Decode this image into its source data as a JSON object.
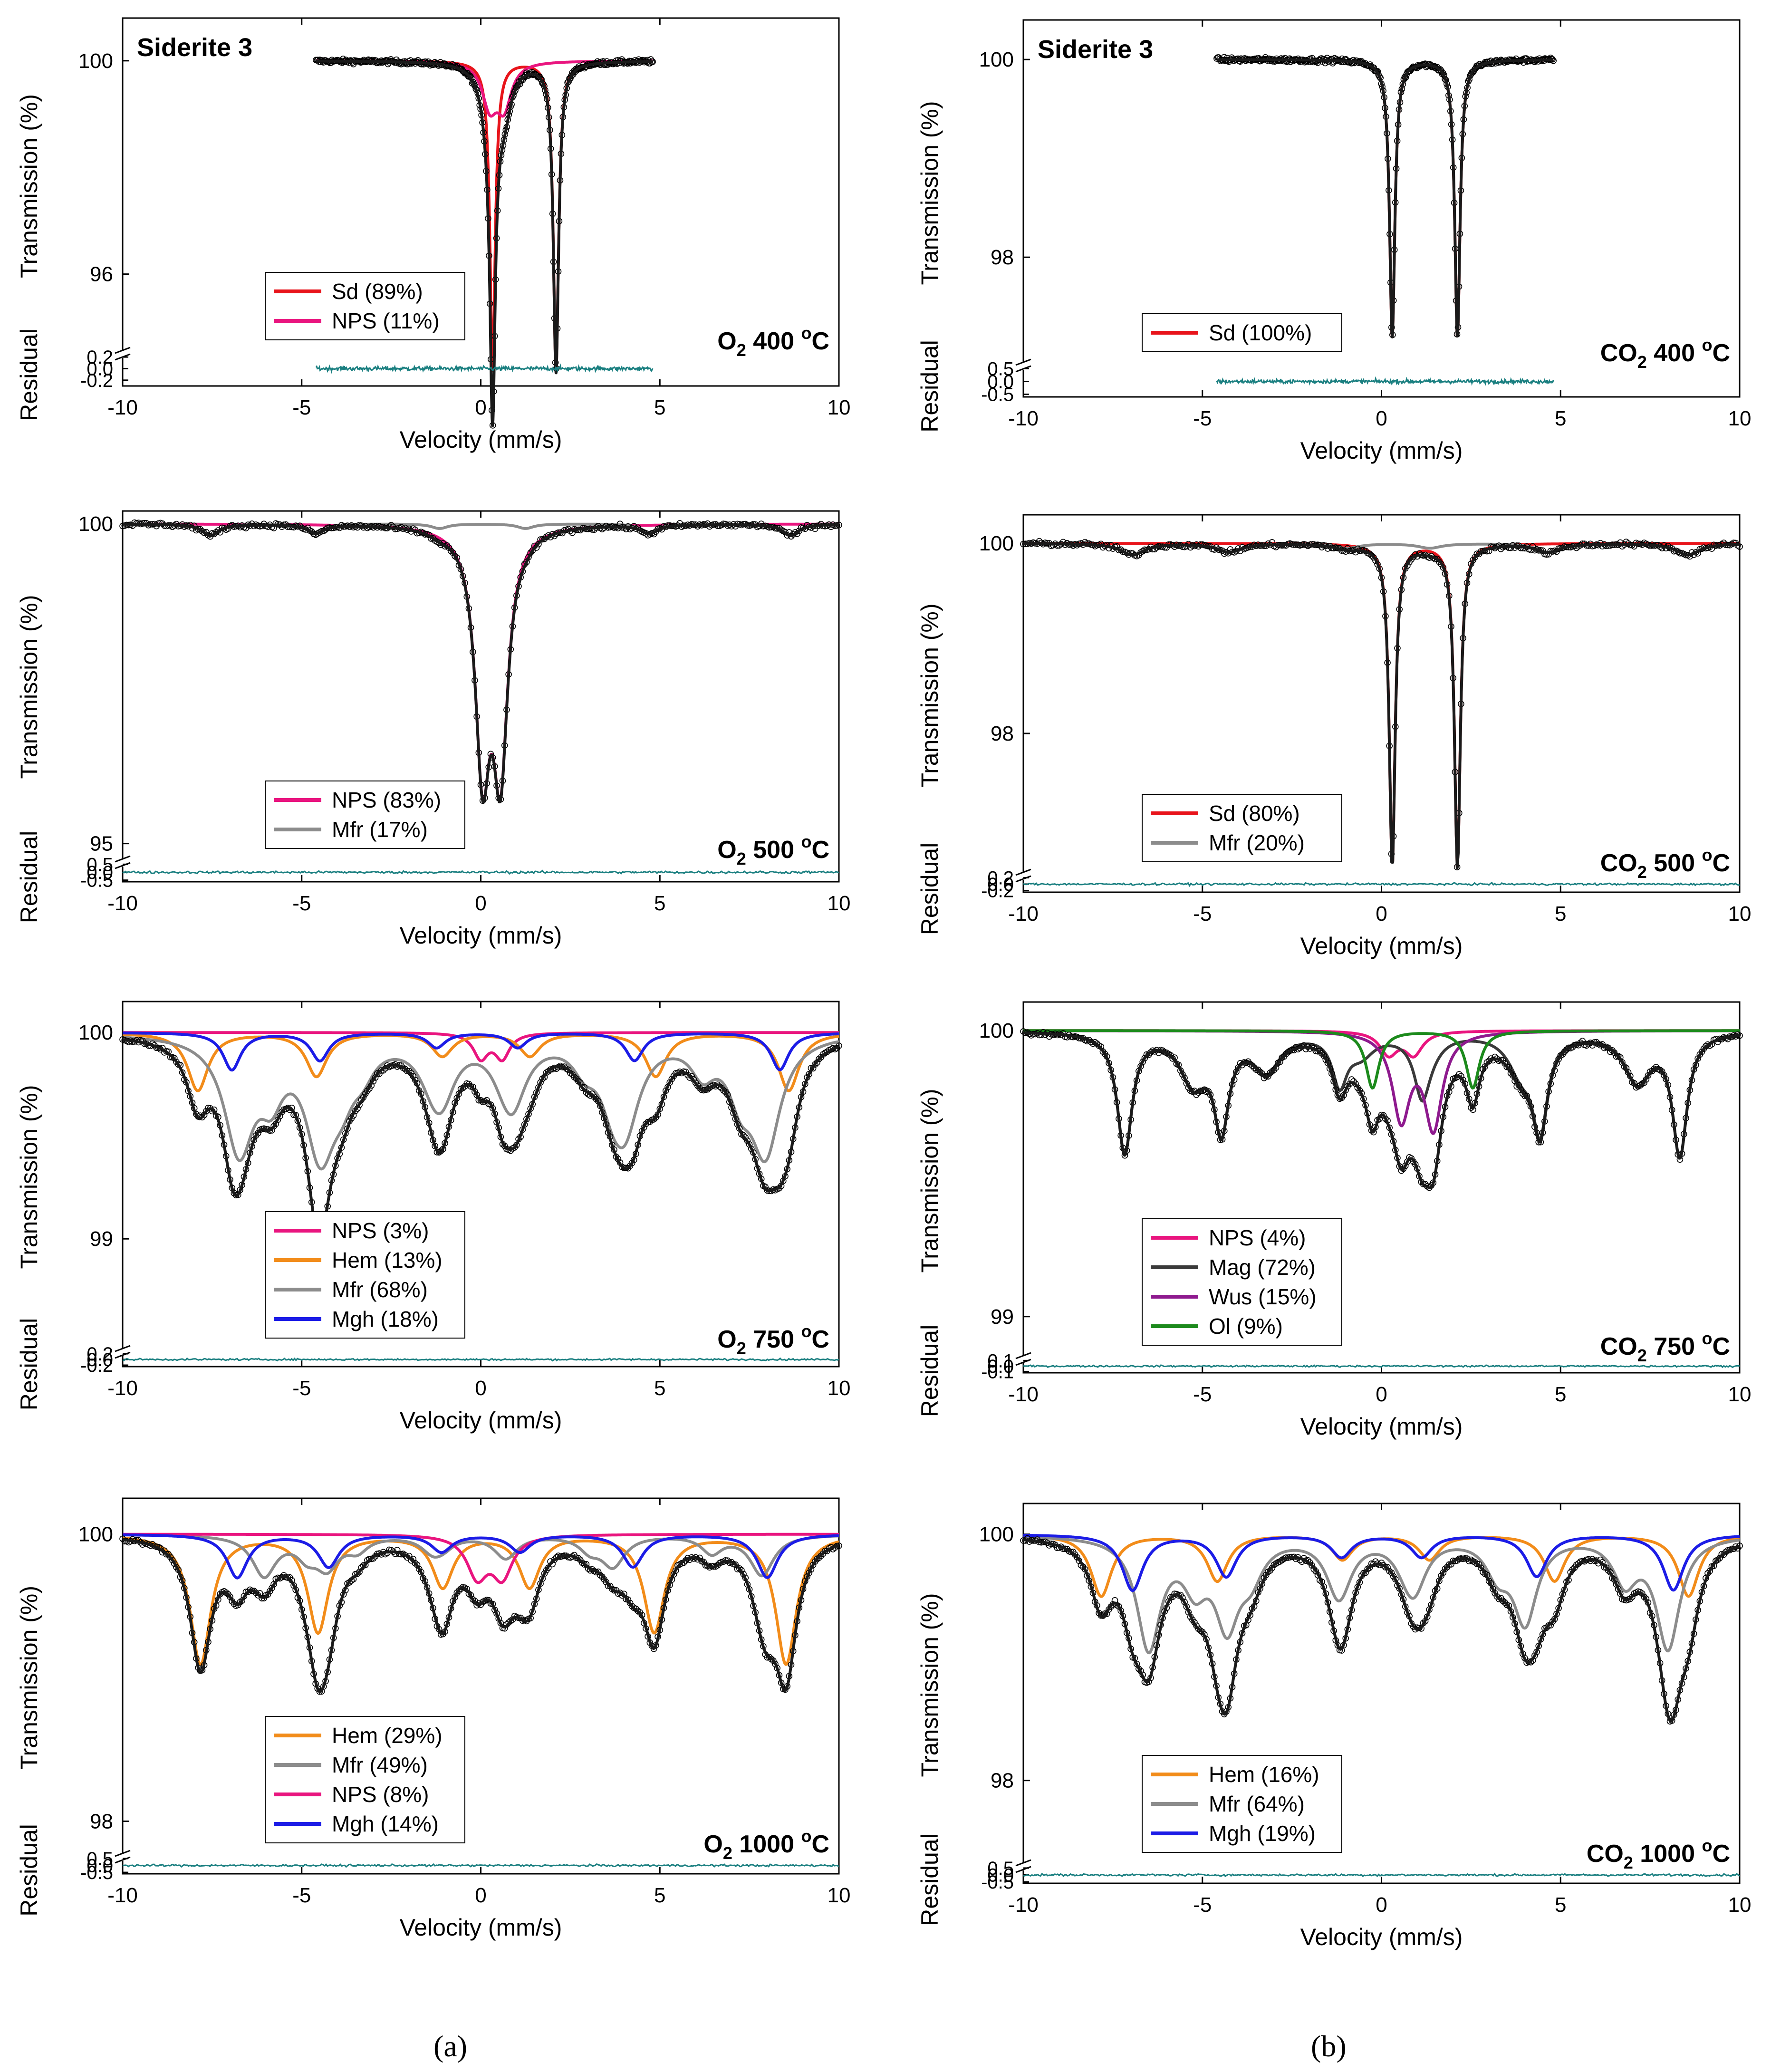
{
  "figure": {
    "panel_labels": [
      "(a)",
      "(b)"
    ]
  },
  "colors": {
    "black_fit": "#1a1a1a",
    "data_points": "#000000",
    "Sd": "#e8141b",
    "NPS": "#e9157f",
    "Mfr": "#8c8c8c",
    "Hem": "#f28c1a",
    "Mgh": "#1c1ce6",
    "Mag": "#3a3a3a",
    "Wus": "#8e1a8e",
    "Ol": "#1c8a1c",
    "residual": "#1a7f80"
  },
  "chart_data": [
    {
      "type": "line",
      "panel": "a",
      "row": 0,
      "xlabel": "Velocity (mm/s)",
      "ylabel": "Transmission (%)",
      "residual_label": "Residual",
      "xlim": [
        -10,
        10
      ],
      "xticks": [
        "-10",
        "-5",
        "0",
        "5",
        "10"
      ],
      "ylim": [
        94.5,
        100.8
      ],
      "yticks": [
        {
          "v": 100,
          "t": "100"
        },
        {
          "v": 96,
          "t": "96"
        }
      ],
      "res_lim": [
        -0.3,
        0.25
      ],
      "res_ticks": [
        {
          "v": 0.2,
          "t": "0.2"
        },
        {
          "v": 0.0,
          "t": "0.0"
        },
        {
          "v": -0.2,
          "t": "-0.2"
        }
      ],
      "data_range": [
        -4.6,
        4.8
      ],
      "sample_label": "Siderite 3",
      "condition": {
        "gas": "O",
        "sub": "2",
        "temp": "400",
        "deg": "o",
        "unit": "C"
      },
      "legend": [
        {
          "label": "Sd (89%)",
          "color": "Sd"
        },
        {
          "label": "NPS (11%)",
          "color": "NPS"
        }
      ],
      "components": [
        {
          "name": "Sd",
          "color": "Sd",
          "sextets": [],
          "lines": [
            [
              0.33,
              5.8,
              0.18
            ],
            [
              2.1,
              5.8,
              0.18
            ]
          ]
        },
        {
          "name": "NPS",
          "color": "NPS",
          "sextets": [],
          "lines": [
            [
              0.25,
              0.8,
              0.5
            ],
            [
              0.65,
              0.8,
              0.5
            ]
          ]
        }
      ]
    },
    {
      "type": "line",
      "panel": "b",
      "row": 0,
      "xlabel": "Velocity (mm/s)",
      "ylabel": "Transmission (%)",
      "residual_label": "Residual",
      "xlim": [
        -10,
        10
      ],
      "xticks": [
        "-10",
        "-5",
        "0",
        "5",
        "10"
      ],
      "ylim": [
        96.9,
        100.4
      ],
      "yticks": [
        {
          "v": 100,
          "t": "100"
        },
        {
          "v": 98,
          "t": "98"
        }
      ],
      "res_lim": [
        -0.6,
        0.6
      ],
      "res_ticks": [
        {
          "v": 0.5,
          "t": "0.5"
        },
        {
          "v": 0.0,
          "t": "0.0"
        },
        {
          "v": -0.5,
          "t": "-0.5"
        }
      ],
      "data_range": [
        -4.6,
        4.8
      ],
      "sample_label": "Siderite 3",
      "condition": {
        "gas": "CO",
        "sub": "2",
        "temp": "400",
        "deg": "o",
        "unit": "C"
      },
      "legend": [
        {
          "label": "Sd (100%)",
          "color": "Sd"
        }
      ],
      "components": [
        {
          "name": "Sd",
          "color": "Sd",
          "sextets": [],
          "lines": [
            [
              0.3,
              2.8,
              0.18
            ],
            [
              2.12,
              2.8,
              0.18
            ]
          ]
        }
      ]
    },
    {
      "type": "line",
      "panel": "a",
      "row": 1,
      "xlabel": "Velocity (mm/s)",
      "ylabel": "Transmission (%)",
      "residual_label": "Residual",
      "xlim": [
        -10,
        10
      ],
      "xticks": [
        "-10",
        "-5",
        "0",
        "5",
        "10"
      ],
      "ylim": [
        94.7,
        100.2
      ],
      "yticks": [
        {
          "v": 100,
          "t": "100"
        },
        {
          "v": 95,
          "t": "95"
        }
      ],
      "res_lim": [
        -0.6,
        0.6
      ],
      "res_ticks": [
        {
          "v": 0.5,
          "t": "0.5"
        },
        {
          "v": 0.0,
          "t": "0.0"
        },
        {
          "v": -0.5,
          "t": "-0.5"
        }
      ],
      "data_range": [
        -10,
        10
      ],
      "sample_label": "",
      "condition": {
        "gas": "O",
        "sub": "2",
        "temp": "500",
        "deg": "o",
        "unit": "C"
      },
      "legend": [
        {
          "label": "NPS (83%)",
          "color": "NPS"
        },
        {
          "label": "Mfr (17%)",
          "color": "Mfr"
        }
      ],
      "components": [
        {
          "name": "NPS",
          "color": "NPS",
          "sextets": [],
          "lines": [
            [
              0.05,
              3.6,
              0.5
            ],
            [
              0.55,
              3.6,
              0.5
            ]
          ]
        },
        {
          "name": "Mfr",
          "color": "Mfr",
          "sextets": [
            [
              0.3,
              16.2,
              0.18,
              0.55,
              0.5
            ]
          ],
          "lines": []
        }
      ]
    },
    {
      "type": "line",
      "panel": "b",
      "row": 1,
      "xlabel": "Velocity (mm/s)",
      "ylabel": "Transmission (%)",
      "residual_label": "Residual",
      "xlim": [
        -10,
        10
      ],
      "xticks": [
        "-10",
        "-5",
        "0",
        "5",
        "10"
      ],
      "ylim": [
        96.5,
        100.3
      ],
      "yticks": [
        {
          "v": 100,
          "t": "100"
        },
        {
          "v": 98,
          "t": "98"
        }
      ],
      "res_lim": [
        -0.25,
        0.25
      ],
      "res_ticks": [
        {
          "v": 0.2,
          "t": "0.2"
        },
        {
          "v": 0.0,
          "t": "0.0"
        },
        {
          "v": -0.2,
          "t": "-0.2"
        }
      ],
      "data_range": [
        -10,
        10
      ],
      "sample_label": "",
      "condition": {
        "gas": "CO",
        "sub": "2",
        "temp": "500",
        "deg": "o",
        "unit": "C"
      },
      "legend": [
        {
          "label": "Sd (80%)",
          "color": "Sd"
        },
        {
          "label": "Mfr (20%)",
          "color": "Mfr"
        }
      ],
      "components": [
        {
          "name": "Sd",
          "color": "Sd",
          "sextets": [],
          "lines": [
            [
              0.3,
              3.4,
              0.2
            ],
            [
              2.12,
              3.4,
              0.2
            ]
          ]
        },
        {
          "name": "Mfr",
          "color": "Mfr",
          "sextets": [
            [
              0.5,
              15.5,
              0.12,
              0.8,
              0.6
            ]
          ],
          "lines": []
        }
      ]
    },
    {
      "type": "line",
      "panel": "a",
      "row": 2,
      "xlabel": "Velocity (mm/s)",
      "ylabel": "Transmission (%)",
      "residual_label": "Residual",
      "xlim": [
        -10,
        10
      ],
      "xticks": [
        "-10",
        "-5",
        "0",
        "5",
        "10"
      ],
      "ylim": [
        98.45,
        100.15
      ],
      "yticks": [
        {
          "v": 100,
          "t": "100"
        },
        {
          "v": 99,
          "t": "99"
        }
      ],
      "res_lim": [
        -0.25,
        0.25
      ],
      "res_ticks": [
        {
          "v": 0.2,
          "t": "0.2"
        },
        {
          "v": 0.0,
          "t": "0.0"
        },
        {
          "v": -0.2,
          "t": "-0.2"
        }
      ],
      "data_range": [
        -10,
        10
      ],
      "sample_label": "",
      "condition": {
        "gas": "O",
        "sub": "2",
        "temp": "750",
        "deg": "o",
        "unit": "C"
      },
      "legend": [
        {
          "label": "NPS (3%)",
          "color": "NPS"
        },
        {
          "label": "Hem (13%)",
          "color": "Hem"
        },
        {
          "label": "Mfr (68%)",
          "color": "Mfr"
        },
        {
          "label": "Mgh (18%)",
          "color": "Mgh"
        }
      ],
      "components": [
        {
          "name": "NPS",
          "color": "NPS",
          "sextets": [],
          "lines": [
            [
              0.0,
              0.12,
              0.5
            ],
            [
              0.6,
              0.12,
              0.5
            ]
          ]
        },
        {
          "name": "Hem",
          "color": "Hem",
          "sextets": [
            [
              0.25,
              16.5,
              0.28,
              0.7,
              0.2
            ]
          ],
          "lines": []
        },
        {
          "name": "Mfr",
          "color": "Mfr",
          "sextets": [
            [
              0.2,
              14.7,
              0.55,
              1.0,
              0.8
            ],
            [
              0.3,
              13.1,
              0.22,
              0.8,
              0.8
            ],
            [
              0.3,
              10.8,
              0.15,
              0.8,
              1.0
            ]
          ],
          "lines": []
        },
        {
          "name": "Mgh",
          "color": "Mgh",
          "sextets": [
            [
              0.3,
              15.3,
              0.18,
              0.6,
              0.8
            ]
          ],
          "lines": []
        }
      ]
    },
    {
      "type": "line",
      "panel": "b",
      "row": 2,
      "xlabel": "Velocity (mm/s)",
      "ylabel": "Transmission (%)",
      "residual_label": "Residual",
      "xlim": [
        -10,
        10
      ],
      "xticks": [
        "-10",
        "-5",
        "0",
        "5",
        "10"
      ],
      "ylim": [
        98.85,
        100.1
      ],
      "yticks": [
        {
          "v": 100,
          "t": "100"
        },
        {
          "v": 99,
          "t": "99"
        }
      ],
      "res_lim": [
        -0.12,
        0.12
      ],
      "res_ticks": [
        {
          "v": 0.1,
          "t": "0.1"
        },
        {
          "v": 0.0,
          "t": "0.0"
        },
        {
          "v": -0.1,
          "t": "-0.1"
        }
      ],
      "data_range": [
        -10,
        10
      ],
      "sample_label": "",
      "condition": {
        "gas": "CO",
        "sub": "2",
        "temp": "750",
        "deg": "o",
        "unit": "C"
      },
      "legend": [
        {
          "label": "NPS (4%)",
          "color": "NPS"
        },
        {
          "label": "Mag (72%)",
          "color": "Mag"
        },
        {
          "label": "Wus (15%)",
          "color": "Wus"
        },
        {
          "label": "Ol (9%)",
          "color": "Ol"
        }
      ],
      "components": [
        {
          "name": "NPS",
          "color": "NPS",
          "sextets": [],
          "lines": [
            [
              0.2,
              0.08,
              0.6
            ],
            [
              0.9,
              0.08,
              0.6
            ]
          ]
        },
        {
          "name": "Mag",
          "color": "Mag",
          "sextets": [
            [
              0.28,
              15.5,
              0.42,
              0.5,
              0.6
            ],
            [
              0.65,
              12.4,
              0.17,
              0.9,
              0.6
            ]
          ],
          "lines": []
        },
        {
          "name": "Wus",
          "color": "Wus",
          "sextets": [],
          "lines": [
            [
              0.55,
              0.3,
              0.6
            ],
            [
              1.45,
              0.33,
              0.6
            ]
          ]
        },
        {
          "name": "Ol",
          "color": "Ol",
          "sextets": [],
          "lines": [
            [
              -0.25,
              0.2,
              0.45
            ],
            [
              2.55,
              0.2,
              0.45
            ]
          ]
        }
      ]
    },
    {
      "type": "line",
      "panel": "a",
      "row": 3,
      "xlabel": "Velocity (mm/s)",
      "ylabel": "Transmission (%)",
      "residual_label": "Residual",
      "xlim": [
        -10,
        10
      ],
      "xticks": [
        "-10",
        "-5",
        "0",
        "5",
        "10"
      ],
      "ylim": [
        97.75,
        100.25
      ],
      "yticks": [
        {
          "v": 100,
          "t": "100"
        },
        {
          "v": 98,
          "t": "98"
        }
      ],
      "res_lim": [
        -0.6,
        0.6
      ],
      "res_ticks": [
        {
          "v": 0.5,
          "t": "0.5"
        },
        {
          "v": 0.0,
          "t": "0.0"
        },
        {
          "v": -0.5,
          "t": "-0.5"
        }
      ],
      "data_range": [
        -10,
        10
      ],
      "sample_label": "",
      "condition": {
        "gas": "O",
        "sub": "2",
        "temp": "1000",
        "deg": "o",
        "unit": "C"
      },
      "legend": [
        {
          "label": "Hem (29%)",
          "color": "Hem"
        },
        {
          "label": "Mfr (49%)",
          "color": "Mfr"
        },
        {
          "label": "NPS (8%)",
          "color": "NPS"
        },
        {
          "label": "Mgh (14%)",
          "color": "Mgh"
        }
      ],
      "components": [
        {
          "name": "Hem",
          "color": "Hem",
          "sextets": [
            [
              0.25,
              16.35,
              0.9,
              0.7,
              0.2
            ]
          ],
          "lines": []
        },
        {
          "name": "Mfr",
          "color": "Mfr",
          "sextets": [
            [
              0.3,
              13.9,
              0.28,
              0.8,
              1.2
            ],
            [
              0.3,
              11.3,
              0.12,
              0.7,
              1.0
            ]
          ],
          "lines": []
        },
        {
          "name": "NPS",
          "color": "NPS",
          "sextets": [],
          "lines": [
            [
              -0.1,
              0.28,
              0.7
            ],
            [
              0.6,
              0.28,
              0.7
            ]
          ]
        },
        {
          "name": "Mgh",
          "color": "Mgh",
          "sextets": [
            [
              0.3,
              14.8,
              0.3,
              0.7,
              0.6
            ]
          ],
          "lines": []
        }
      ]
    },
    {
      "type": "line",
      "panel": "b",
      "row": 3,
      "xlabel": "Velocity (mm/s)",
      "ylabel": "Transmission (%)",
      "residual_label": "Residual",
      "xlim": [
        -10,
        10
      ],
      "xticks": [
        "-10",
        "-5",
        "0",
        "5",
        "10"
      ],
      "ylim": [
        97.3,
        100.25
      ],
      "yticks": [
        {
          "v": 100,
          "t": "100"
        },
        {
          "v": 98,
          "t": "98"
        }
      ],
      "res_lim": [
        -0.6,
        0.6
      ],
      "res_ticks": [
        {
          "v": 0.5,
          "t": "0.5"
        },
        {
          "v": 0.0,
          "t": "0.0"
        },
        {
          "v": -0.5,
          "t": "-0.5"
        }
      ],
      "data_range": [
        -10,
        10
      ],
      "sample_label": "",
      "condition": {
        "gas": "CO",
        "sub": "2",
        "temp": "1000",
        "deg": "o",
        "unit": "C"
      },
      "legend": [
        {
          "label": "Hem (16%)",
          "color": "Hem"
        },
        {
          "label": "Mfr (64%)",
          "color": "Mfr"
        },
        {
          "label": "Mgh (19%)",
          "color": "Mgh"
        }
      ],
      "components": [
        {
          "name": "Hem",
          "color": "Hem",
          "sextets": [
            [
              0.25,
              16.4,
              0.5,
              0.7,
              0.25
            ]
          ],
          "lines": []
        },
        {
          "name": "Mfr",
          "color": "Mfr",
          "sextets": [
            [
              0.3,
              14.5,
              0.9,
              0.8,
              0.9
            ],
            [
              0.3,
              12.0,
              0.35,
              0.8,
              1.0
            ]
          ],
          "lines": []
        },
        {
          "name": "Mgh",
          "color": "Mgh",
          "sextets": [
            [
              0.3,
              15.1,
              0.45,
              0.7,
              0.6
            ]
          ],
          "lines": []
        }
      ]
    }
  ]
}
